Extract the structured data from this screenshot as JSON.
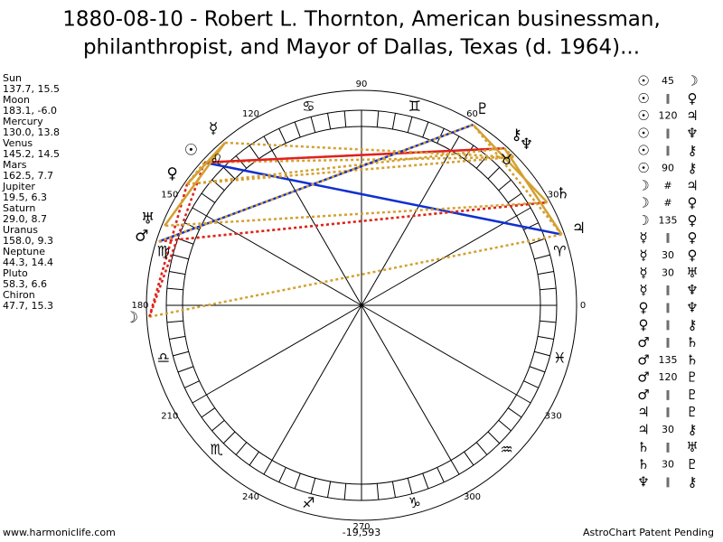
{
  "title": [
    "1880-08-10 - Robert L. Thornton, American businessman,",
    "philanthropist, and Mayor of Dallas, Texas (d. 1964)..."
  ],
  "planets": [
    {
      "name": "Sun",
      "coords": "137.7, 15.5",
      "glyph": "☉"
    },
    {
      "name": "Moon",
      "coords": "183.1, -6.0",
      "glyph": "☽"
    },
    {
      "name": "Mercury",
      "coords": "130.0, 13.8",
      "glyph": "☿"
    },
    {
      "name": "Venus",
      "coords": "145.2, 14.5",
      "glyph": "♀"
    },
    {
      "name": "Mars",
      "coords": "162.5, 7.7",
      "glyph": "♂"
    },
    {
      "name": "Jupiter",
      "coords": "19.5, 6.3",
      "glyph": "♃"
    },
    {
      "name": "Saturn",
      "coords": "29.0, 8.7",
      "glyph": "♄"
    },
    {
      "name": "Uranus",
      "coords": "158.0, 9.3",
      "glyph": "♅"
    },
    {
      "name": "Neptune",
      "coords": "44.3, 14.4",
      "glyph": "♆"
    },
    {
      "name": "Pluto",
      "coords": "58.3, 6.6",
      "glyph": "♇"
    },
    {
      "name": "Chiron",
      "coords": "47.7, 15.3",
      "glyph": "⚷"
    }
  ],
  "degrees": [
    0,
    30,
    60,
    90,
    120,
    150,
    180,
    210,
    240,
    270,
    300,
    330
  ],
  "signs": [
    "♈",
    "♉",
    "♊",
    "♋",
    "♌",
    "♍",
    "♎",
    "♏",
    "♐",
    "♑",
    "♒",
    "♓"
  ],
  "aspects": [
    {
      "a": "☉",
      "type": "45",
      "b": "☽"
    },
    {
      "a": "☉",
      "type": "∥",
      "b": "♀"
    },
    {
      "a": "☉",
      "type": "120",
      "b": "♃"
    },
    {
      "a": "☉",
      "type": "∥",
      "b": "♆"
    },
    {
      "a": "☉",
      "type": "∥",
      "b": "⚷"
    },
    {
      "a": "☉",
      "type": "90",
      "b": "⚷"
    },
    {
      "a": "☽",
      "type": "#",
      "b": "♃"
    },
    {
      "a": "☽",
      "type": "#",
      "b": "♀"
    },
    {
      "a": "☽",
      "type": "135",
      "b": "♀"
    },
    {
      "a": "☿",
      "type": "∥",
      "b": "♀"
    },
    {
      "a": "☿",
      "type": "30",
      "b": "♀"
    },
    {
      "a": "☿",
      "type": "30",
      "b": "♅"
    },
    {
      "a": "☿",
      "type": "∥",
      "b": "♆"
    },
    {
      "a": "♀",
      "type": "∥",
      "b": "♆"
    },
    {
      "a": "♀",
      "type": "∥",
      "b": "⚷"
    },
    {
      "a": "♂",
      "type": "∥",
      "b": "♄"
    },
    {
      "a": "♂",
      "type": "135",
      "b": "♄"
    },
    {
      "a": "♂",
      "type": "120",
      "b": "♇"
    },
    {
      "a": "♂",
      "type": "∥",
      "b": "♇"
    },
    {
      "a": "♃",
      "type": "∥",
      "b": "♇"
    },
    {
      "a": "♃",
      "type": "30",
      "b": "⚷"
    },
    {
      "a": "♄",
      "type": "∥",
      "b": "♅"
    },
    {
      "a": "♄",
      "type": "30",
      "b": "♇"
    },
    {
      "a": "♆",
      "type": "∥",
      "b": "⚷"
    }
  ],
  "footer": {
    "site": "www.harmoniclife.com",
    "center_value": "-19,593",
    "notice": "AstroChart Patent Pending"
  }
}
